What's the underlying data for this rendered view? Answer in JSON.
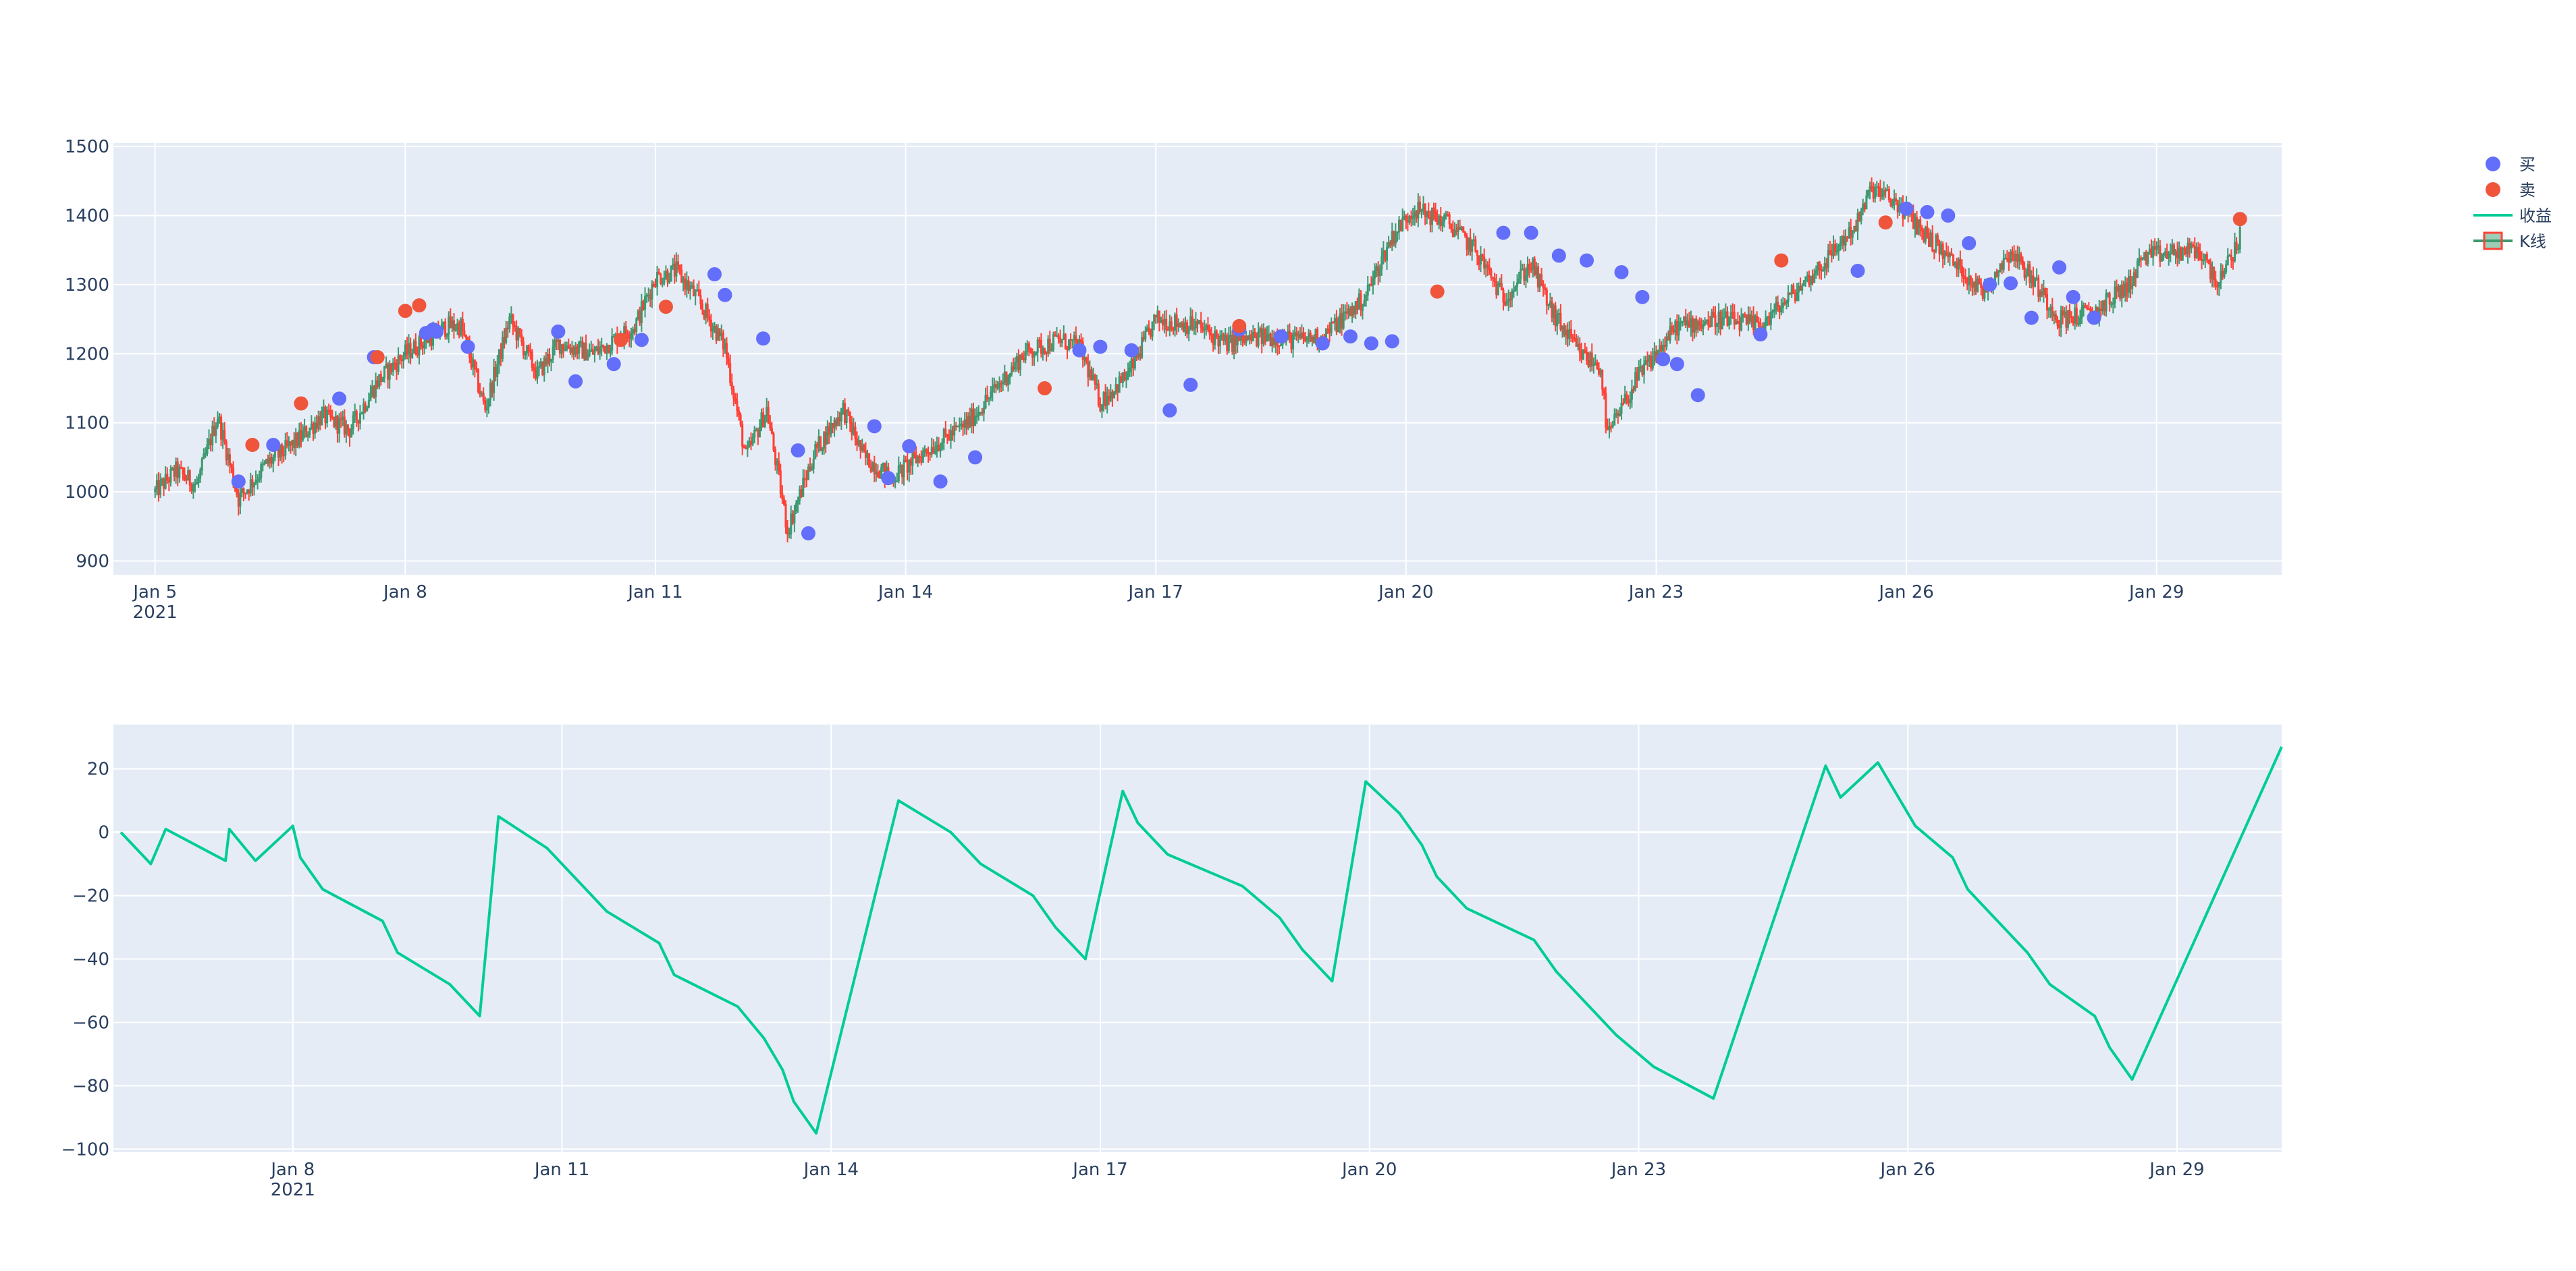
{
  "chart_data": [
    {
      "type": "candlestick",
      "x_axis_type": "date",
      "x_range": [
        "2021-01-04 12:00",
        "2021-01-30 12:00"
      ],
      "x_ticks": [
        {
          "date": "2021-01-05",
          "label": "Jan 5",
          "sublabel": "2021"
        },
        {
          "date": "2021-01-08",
          "label": "Jan 8"
        },
        {
          "date": "2021-01-11",
          "label": "Jan 11"
        },
        {
          "date": "2021-01-14",
          "label": "Jan 14"
        },
        {
          "date": "2021-01-17",
          "label": "Jan 17"
        },
        {
          "date": "2021-01-20",
          "label": "Jan 20"
        },
        {
          "date": "2021-01-23",
          "label": "Jan 23"
        },
        {
          "date": "2021-01-26",
          "label": "Jan 26"
        },
        {
          "date": "2021-01-29",
          "label": "Jan 29"
        }
      ],
      "ylim": [
        880,
        1505
      ],
      "y_ticks": [
        900,
        1000,
        1100,
        1200,
        1300,
        1400,
        1500
      ],
      "grid": true,
      "legend_position": "top-right",
      "series": [
        {
          "name": "K线",
          "kind": "candlestick",
          "increasing_color": "#3D9970",
          "decreasing_color": "#FF4136",
          "price_path": [
            [
              "2021-01-05 00:00",
              1000
            ],
            [
              "2021-01-05 06:00",
              1030
            ],
            [
              "2021-01-05 12:00",
              1010
            ],
            [
              "2021-01-05 18:00",
              1110
            ],
            [
              "2021-01-06 00:00",
              990
            ],
            [
              "2021-01-06 08:00",
              1040
            ],
            [
              "2021-01-06 16:00",
              1070
            ],
            [
              "2021-01-07 00:00",
              1110
            ],
            [
              "2021-01-07 08:00",
              1090
            ],
            [
              "2021-01-07 16:00",
              1160
            ],
            [
              "2021-01-08 00:00",
              1200
            ],
            [
              "2021-01-08 12:00",
              1240
            ],
            [
              "2021-01-08 16:00",
              1240
            ],
            [
              "2021-01-08 23:00",
              1120
            ],
            [
              "2021-01-09 06:00",
              1250
            ],
            [
              "2021-01-09 14:00",
              1170
            ],
            [
              "2021-01-09 20:00",
              1215
            ],
            [
              "2021-01-10 06:00",
              1200
            ],
            [
              "2021-01-10 18:00",
              1240
            ],
            [
              "2021-01-11 00:00",
              1310
            ],
            [
              "2021-01-11 06:00",
              1320
            ],
            [
              "2021-01-11 12:00",
              1280
            ],
            [
              "2021-01-11 20:00",
              1210
            ],
            [
              "2021-01-12 02:00",
              1050
            ],
            [
              "2021-01-12 08:00",
              1120
            ],
            [
              "2021-01-12 14:00",
              945
            ],
            [
              "2021-01-12 22:00",
              1060
            ],
            [
              "2021-01-13 06:00",
              1120
            ],
            [
              "2021-01-13 12:00",
              1050
            ],
            [
              "2021-01-13 20:00",
              1020
            ],
            [
              "2021-01-14 06:00",
              1060
            ],
            [
              "2021-01-14 18:00",
              1100
            ],
            [
              "2021-01-15 02:00",
              1150
            ],
            [
              "2021-01-15 10:00",
              1200
            ],
            [
              "2021-01-15 20:00",
              1220
            ],
            [
              "2021-01-16 02:00",
              1210
            ],
            [
              "2021-01-16 08:00",
              1130
            ],
            [
              "2021-01-16 16:00",
              1170
            ],
            [
              "2021-01-17 00:00",
              1250
            ],
            [
              "2021-01-17 12:00",
              1240
            ],
            [
              "2021-01-17 20:00",
              1215
            ],
            [
              "2021-01-18 08:00",
              1225
            ],
            [
              "2021-01-18 16:00",
              1220
            ],
            [
              "2021-01-19 00:00",
              1225
            ],
            [
              "2021-01-19 12:00",
              1280
            ],
            [
              "2021-01-19 20:00",
              1370
            ],
            [
              "2021-01-20 02:00",
              1410
            ],
            [
              "2021-01-20 12:00",
              1390
            ],
            [
              "2021-01-20 20:00",
              1350
            ],
            [
              "2021-01-21 04:00",
              1280
            ],
            [
              "2021-01-21 12:00",
              1330
            ],
            [
              "2021-01-21 18:00",
              1260
            ],
            [
              "2021-01-22 02:00",
              1200
            ],
            [
              "2021-01-22 08:00",
              1180
            ],
            [
              "2021-01-22 10:00",
              1080
            ],
            [
              "2021-01-22 18:00",
              1160
            ],
            [
              "2021-01-23 06:00",
              1240
            ],
            [
              "2021-01-23 18:00",
              1250
            ],
            [
              "2021-01-24 06:00",
              1240
            ],
            [
              "2021-01-24 16:00",
              1290
            ],
            [
              "2021-01-25 00:00",
              1330
            ],
            [
              "2021-01-25 10:00",
              1390
            ],
            [
              "2021-01-25 14:00",
              1440
            ],
            [
              "2021-01-25 22:00",
              1415
            ],
            [
              "2021-01-26 06:00",
              1370
            ],
            [
              "2021-01-26 14:00",
              1330
            ],
            [
              "2021-01-26 22:00",
              1290
            ],
            [
              "2021-01-27 06:00",
              1350
            ],
            [
              "2021-01-27 12:00",
              1310
            ],
            [
              "2021-01-27 20:00",
              1250
            ],
            [
              "2021-01-28 06:00",
              1260
            ],
            [
              "2021-01-28 16:00",
              1300
            ],
            [
              "2021-01-28 20:00",
              1340
            ],
            [
              "2021-01-29 12:00",
              1350
            ],
            [
              "2021-01-29 18:00",
              1300
            ],
            [
              "2021-01-30 00:00",
              1370
            ]
          ]
        },
        {
          "name": "买",
          "kind": "markers",
          "color": "#636EFA",
          "points": [
            [
              "2021-01-06 00:00",
              1015
            ],
            [
              "2021-01-06 10:00",
              1068
            ],
            [
              "2021-01-07 05:00",
              1135
            ],
            [
              "2021-01-07 15:00",
              1195
            ],
            [
              "2021-01-08 06:00",
              1230
            ],
            [
              "2021-01-08 08:00",
              1235
            ],
            [
              "2021-01-08 09:00",
              1232
            ],
            [
              "2021-01-08 18:00",
              1210
            ],
            [
              "2021-01-09 20:00",
              1232
            ],
            [
              "2021-01-10 01:00",
              1160
            ],
            [
              "2021-01-10 12:00",
              1185
            ],
            [
              "2021-01-10 20:00",
              1220
            ],
            [
              "2021-01-11 17:00",
              1315
            ],
            [
              "2021-01-11 20:00",
              1285
            ],
            [
              "2021-01-12 07:00",
              1222
            ],
            [
              "2021-01-12 17:00",
              1060
            ],
            [
              "2021-01-12 20:00",
              940
            ],
            [
              "2021-01-13 15:00",
              1095
            ],
            [
              "2021-01-13 19:00",
              1020
            ],
            [
              "2021-01-14 01:00",
              1066
            ],
            [
              "2021-01-14 10:00",
              1015
            ],
            [
              "2021-01-14 20:00",
              1050
            ],
            [
              "2021-01-16 02:00",
              1205
            ],
            [
              "2021-01-16 08:00",
              1210
            ],
            [
              "2021-01-16 17:00",
              1205
            ],
            [
              "2021-01-17 04:00",
              1118
            ],
            [
              "2021-01-17 10:00",
              1155
            ],
            [
              "2021-01-18 00:00",
              1235
            ],
            [
              "2021-01-18 12:00",
              1225
            ],
            [
              "2021-01-19 00:00",
              1215
            ],
            [
              "2021-01-19 08:00",
              1225
            ],
            [
              "2021-01-19 14:00",
              1215
            ],
            [
              "2021-01-19 20:00",
              1218
            ],
            [
              "2021-01-21 04:00",
              1375
            ],
            [
              "2021-01-21 12:00",
              1375
            ],
            [
              "2021-01-21 20:00",
              1342
            ],
            [
              "2021-01-22 04:00",
              1335
            ],
            [
              "2021-01-22 14:00",
              1318
            ],
            [
              "2021-01-22 20:00",
              1282
            ],
            [
              "2021-01-23 02:00",
              1192
            ],
            [
              "2021-01-23 06:00",
              1185
            ],
            [
              "2021-01-23 12:00",
              1140
            ],
            [
              "2021-01-24 06:00",
              1228
            ],
            [
              "2021-01-25 10:00",
              1320
            ],
            [
              "2021-01-26 00:00",
              1410
            ],
            [
              "2021-01-26 06:00",
              1405
            ],
            [
              "2021-01-26 12:00",
              1400
            ],
            [
              "2021-01-26 18:00",
              1360
            ],
            [
              "2021-01-27 00:00",
              1300
            ],
            [
              "2021-01-27 06:00",
              1302
            ],
            [
              "2021-01-27 12:00",
              1252
            ],
            [
              "2021-01-27 20:00",
              1325
            ],
            [
              "2021-01-28 00:00",
              1282
            ],
            [
              "2021-01-28 06:00",
              1252
            ]
          ]
        },
        {
          "name": "卖",
          "kind": "markers",
          "color": "#EF553B",
          "points": [
            [
              "2021-01-06 04:00",
              1068
            ],
            [
              "2021-01-06 18:00",
              1128
            ],
            [
              "2021-01-07 16:00",
              1195
            ],
            [
              "2021-01-08 00:00",
              1262
            ],
            [
              "2021-01-08 04:00",
              1270
            ],
            [
              "2021-01-10 14:00",
              1220
            ],
            [
              "2021-01-11 03:00",
              1268
            ],
            [
              "2021-01-15 16:00",
              1150
            ],
            [
              "2021-01-18 00:00",
              1240
            ],
            [
              "2021-01-20 09:00",
              1290
            ],
            [
              "2021-01-24 12:00",
              1335
            ],
            [
              "2021-01-25 18:00",
              1390
            ],
            [
              "2021-01-30 00:00",
              1395
            ]
          ]
        }
      ]
    },
    {
      "type": "line",
      "x_axis_type": "date",
      "x_range": [
        "2021-01-06 00:00",
        "2021-01-30 04:00"
      ],
      "x_ticks": [
        {
          "date": "2021-01-08",
          "label": "Jan 8",
          "sublabel": "2021"
        },
        {
          "date": "2021-01-11",
          "label": "Jan 11"
        },
        {
          "date": "2021-01-14",
          "label": "Jan 14"
        },
        {
          "date": "2021-01-17",
          "label": "Jan 17"
        },
        {
          "date": "2021-01-20",
          "label": "Jan 20"
        },
        {
          "date": "2021-01-23",
          "label": "Jan 23"
        },
        {
          "date": "2021-01-26",
          "label": "Jan 26"
        },
        {
          "date": "2021-01-29",
          "label": "Jan 29"
        }
      ],
      "ylim": [
        -101,
        34
      ],
      "y_ticks": [
        -100,
        -80,
        -60,
        -40,
        -20,
        0,
        20
      ],
      "grid": true,
      "series": [
        {
          "name": "收益",
          "color": "#00CC96",
          "points": [
            [
              "2021-01-06 02:00",
              0
            ],
            [
              "2021-01-06 10:00",
              -10
            ],
            [
              "2021-01-06 14:00",
              1
            ],
            [
              "2021-01-07 06:00",
              -9
            ],
            [
              "2021-01-07 07:00",
              1
            ],
            [
              "2021-01-07 14:00",
              -9
            ],
            [
              "2021-01-08 00:00",
              2
            ],
            [
              "2021-01-08 02:00",
              -8
            ],
            [
              "2021-01-08 08:00",
              -18
            ],
            [
              "2021-01-09 00:00",
              -28
            ],
            [
              "2021-01-09 04:00",
              -38
            ],
            [
              "2021-01-09 18:00",
              -48
            ],
            [
              "2021-01-10 02:00",
              -58
            ],
            [
              "2021-01-10 07:00",
              5
            ],
            [
              "2021-01-10 20:00",
              -5
            ],
            [
              "2021-01-11 12:00",
              -25
            ],
            [
              "2021-01-12 02:00",
              -35
            ],
            [
              "2021-01-12 06:00",
              -45
            ],
            [
              "2021-01-12 23:00",
              -55
            ],
            [
              "2021-01-13 06:00",
              -65
            ],
            [
              "2021-01-13 11:00",
              -75
            ],
            [
              "2021-01-13 14:00",
              -85
            ],
            [
              "2021-01-13 20:00",
              -95
            ],
            [
              "2021-01-14 18:00",
              10
            ],
            [
              "2021-01-15 08:00",
              0
            ],
            [
              "2021-01-15 16:00",
              -10
            ],
            [
              "2021-01-16 06:00",
              -20
            ],
            [
              "2021-01-16 12:00",
              -30
            ],
            [
              "2021-01-16 20:00",
              -40
            ],
            [
              "2021-01-17 06:00",
              13
            ],
            [
              "2021-01-17 10:00",
              3
            ],
            [
              "2021-01-17 18:00",
              -7
            ],
            [
              "2021-01-18 14:00",
              -17
            ],
            [
              "2021-01-19 00:00",
              -27
            ],
            [
              "2021-01-19 06:00",
              -37
            ],
            [
              "2021-01-19 14:00",
              -47
            ],
            [
              "2021-01-19 23:00",
              16
            ],
            [
              "2021-01-20 08:00",
              6
            ],
            [
              "2021-01-20 14:00",
              -4
            ],
            [
              "2021-01-20 18:00",
              -14
            ],
            [
              "2021-01-21 02:00",
              -24
            ],
            [
              "2021-01-21 20:00",
              -34
            ],
            [
              "2021-01-22 02:00",
              -44
            ],
            [
              "2021-01-22 10:00",
              -54
            ],
            [
              "2021-01-22 18:00",
              -64
            ],
            [
              "2021-01-23 04:00",
              -74
            ],
            [
              "2021-01-23 20:00",
              -84
            ],
            [
              "2021-01-25 02:00",
              21
            ],
            [
              "2021-01-25 06:00",
              11
            ],
            [
              "2021-01-25 16:00",
              22
            ],
            [
              "2021-01-26 02:00",
              2
            ],
            [
              "2021-01-26 12:00",
              -8
            ],
            [
              "2021-01-26 16:00",
              -18
            ],
            [
              "2021-01-27 00:00",
              -28
            ],
            [
              "2021-01-27 08:00",
              -38
            ],
            [
              "2021-01-27 14:00",
              -48
            ],
            [
              "2021-01-28 02:00",
              -58
            ],
            [
              "2021-01-28 06:00",
              -68
            ],
            [
              "2021-01-28 12:00",
              -78
            ],
            [
              "2021-01-30 04:00",
              27
            ]
          ]
        }
      ]
    }
  ]
}
